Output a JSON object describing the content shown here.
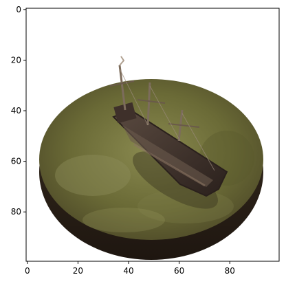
{
  "figure": {
    "kind": "image-plot",
    "axes_frame_color": "#000000",
    "x_tick_labels": [
      "0",
      "20",
      "40",
      "60",
      "80"
    ],
    "y_tick_labels": [
      "0",
      "20",
      "40",
      "60",
      "80"
    ],
    "x_tick_values": [
      0,
      20,
      40,
      60,
      80
    ],
    "y_tick_values": [
      0,
      20,
      40,
      60,
      80
    ],
    "image_extent": [
      -0.5,
      99.5,
      99.5,
      -0.5
    ]
  },
  "image": {
    "subject": "toy ship on a round green base",
    "colors": {
      "background": "#ffffff",
      "base_top": "#6a6a36",
      "base_top_light": "#8a8a50",
      "base_rim": "#2e2418",
      "ship_hull": "#4a3a32",
      "ship_dark": "#2a201c",
      "mast": "#8a7a6a"
    }
  }
}
